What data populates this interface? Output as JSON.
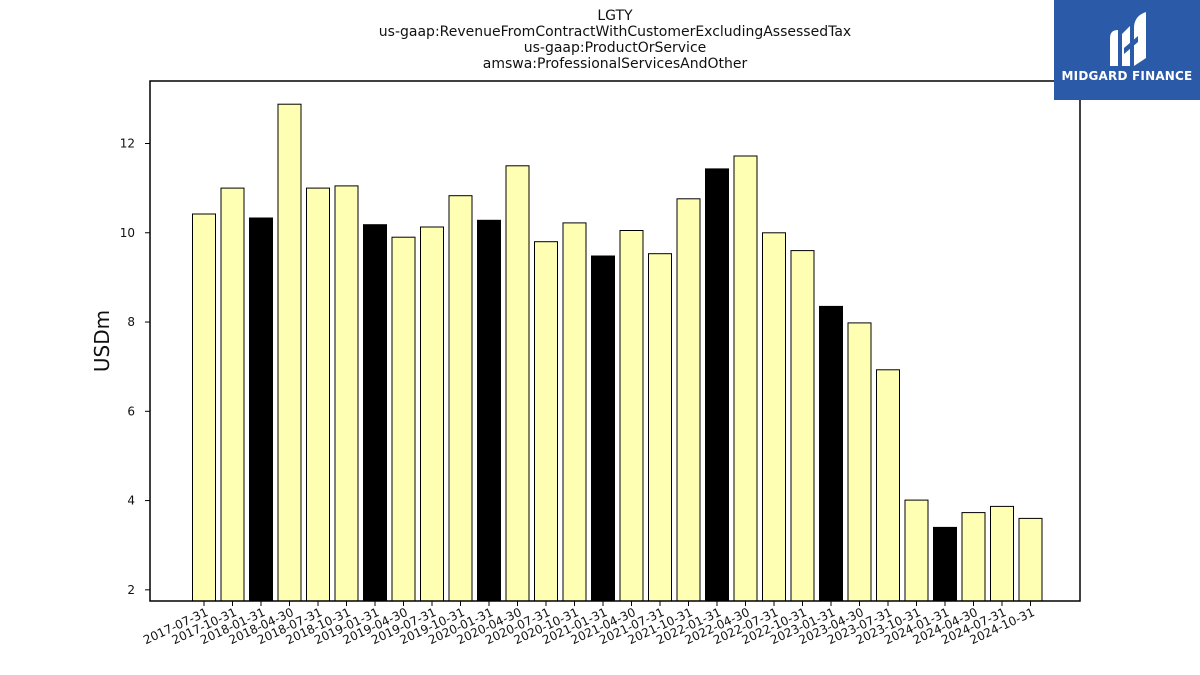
{
  "chart_data": {
    "type": "bar",
    "title_lines": [
      "LGTY",
      "us-gaap:RevenueFromContractWithCustomerExcludingAssessedTax",
      "us-gaap:ProductOrService",
      "amswa:ProfessionalServicesAndOther"
    ],
    "xlabel": "",
    "ylabel": "USDm",
    "ylim": [
      1.75,
      13.4
    ],
    "yticks": [
      2,
      4,
      6,
      8,
      10,
      12
    ],
    "grid": false,
    "categories": [
      "2017-07-31",
      "2017-10-31",
      "2018-01-31",
      "2018-04-30",
      "2018-07-31",
      "2018-10-31",
      "2019-01-31",
      "2019-04-30",
      "2019-07-31",
      "2019-10-31",
      "2020-01-31",
      "2020-04-30",
      "2020-07-31",
      "2020-10-31",
      "2021-01-31",
      "2021-04-30",
      "2021-07-31",
      "2021-10-31",
      "2022-01-31",
      "2022-04-30",
      "2022-07-31",
      "2022-10-31",
      "2023-01-31",
      "2023-04-30",
      "2023-07-31",
      "2023-10-31",
      "2024-01-31",
      "2024-04-30",
      "2024-07-31",
      "2024-10-31"
    ],
    "values": [
      10.42,
      11.0,
      10.33,
      12.88,
      11.0,
      11.05,
      10.18,
      9.9,
      10.13,
      10.83,
      10.28,
      11.5,
      9.8,
      10.22,
      9.48,
      10.05,
      9.53,
      10.76,
      11.43,
      11.72,
      10.0,
      9.6,
      8.35,
      7.98,
      6.93,
      4.01,
      3.4,
      3.73,
      3.87,
      3.6
    ],
    "highlight_indices": [
      2,
      6,
      10,
      14,
      18,
      22,
      26
    ],
    "colors": {
      "bar": "#ffffb3",
      "highlight": "#000000",
      "edge": "#000000"
    }
  },
  "brand": {
    "name": "MIDGARD FINANCE",
    "color": "#2a5aa8"
  }
}
